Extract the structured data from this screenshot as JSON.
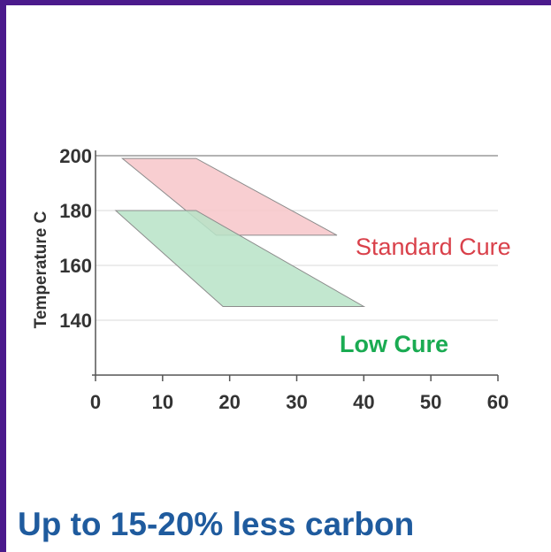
{
  "chart_data": {
    "type": "area",
    "xlabel": "",
    "ylabel": "Temperature C",
    "xlim": [
      0,
      60
    ],
    "ylim": [
      120,
      200
    ],
    "xticks": [
      0,
      10,
      20,
      30,
      40,
      50,
      60
    ],
    "yticks": [
      140,
      160,
      180,
      200
    ],
    "grid": true,
    "series": [
      {
        "name": "Standard Cure",
        "color": "#f7c6c9",
        "label_color": "#d9404a",
        "points": [
          [
            4,
            199
          ],
          [
            15,
            199
          ],
          [
            36,
            171
          ],
          [
            18,
            171
          ]
        ]
      },
      {
        "name": "Low Cure",
        "color": "#b7e3c7",
        "label_color": "#1aab52",
        "points": [
          [
            3,
            180
          ],
          [
            15,
            180
          ],
          [
            40,
            145
          ],
          [
            19,
            145
          ]
        ]
      }
    ]
  },
  "footer": {
    "text": "Up to 15-20% less carbon"
  },
  "colors": {
    "frame": "#4b1a8c",
    "footer_text": "#1f5b9e"
  }
}
